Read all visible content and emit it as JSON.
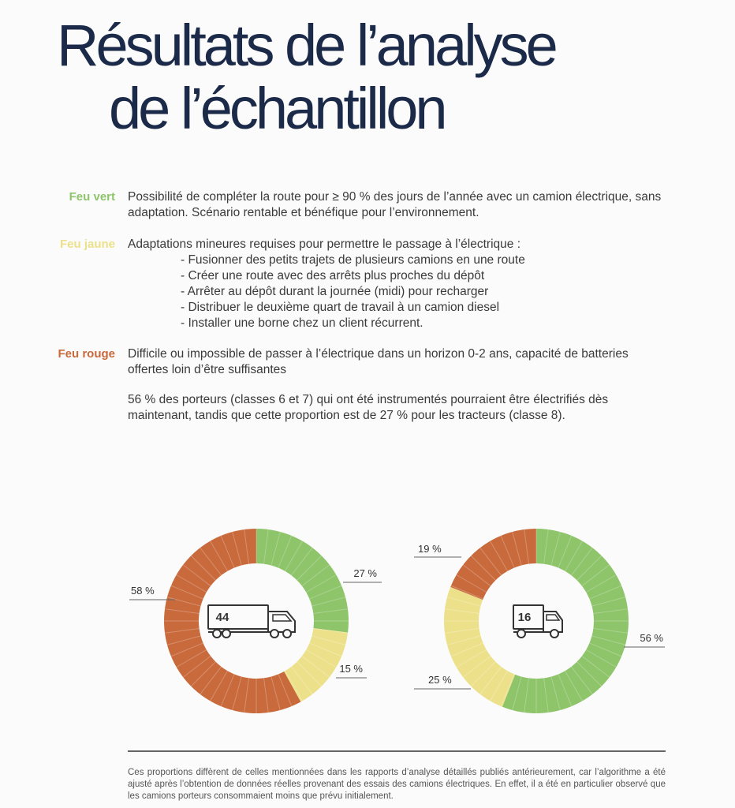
{
  "page": {
    "title_line1": "Résultats de l’analyse",
    "title_line2": "de l’échantillon"
  },
  "legend": {
    "green": {
      "label": "Feu vert",
      "color": "#8ec46a",
      "text": "Possibilité de compléter la route pour ≥ 90 % des jours de l’année avec un camion électrique, sans adaptation. Scénario rentable et bénéfique pour l’environnement."
    },
    "yellow": {
      "label": "Feu jaune",
      "color": "#ece18a",
      "text": "Adaptations mineures requises pour permettre le passage à l’électrique :",
      "bullets": [
        "Fusionner des petits trajets de plusieurs camions en une route",
        "Créer une route avec des arrêts plus proches du dépôt",
        "Arrêter au dépôt durant la journée (midi) pour recharger",
        "Distribuer le deuxième quart de travail à un camion diesel",
        "Installer une borne chez un client récurrent."
      ]
    },
    "red": {
      "label": "Feu rouge",
      "color": "#c96a3c",
      "text": "Difficile ou impossible de passer à l’électrique dans un horizon 0-2 ans, capacité de batteries offertes loin d’être suffisantes"
    }
  },
  "summary": "56 % des porteurs (classes 6 et 7) qui ont été instrumentés pourraient être électrifiés dès maintenant, tandis que cette proportion est de 27 % pour les tracteurs (classe 8).",
  "chart_data": [
    {
      "type": "pie",
      "center_label": "44",
      "icon": "tractor-trailer-icon",
      "categories": [
        "Feu vert",
        "Feu jaune",
        "Feu rouge"
      ],
      "values": [
        27,
        15,
        58
      ],
      "labels": [
        "27 %",
        "15 %",
        "58 %"
      ],
      "colors": [
        "#8ec46a",
        "#ece18a",
        "#c96a3c"
      ]
    },
    {
      "type": "pie",
      "center_label": "16",
      "icon": "box-truck-icon",
      "categories": [
        "Feu vert",
        "Feu jaune",
        "Feu rouge"
      ],
      "values": [
        56,
        25,
        19
      ],
      "labels": [
        "56 %",
        "25 %",
        "19 %"
      ],
      "colors": [
        "#8ec46a",
        "#ece18a",
        "#c96a3c"
      ]
    }
  ],
  "footnote": "Ces proportions diffèrent de celles mentionnées dans les rapports d’analyse détaillés publiés antérieurement, car l’algorithme a été ajusté après l’obtention de données réelles provenant des essais des camions électriques. En effet, il a été en particulier observé que les camions porteurs consommaient moins que prévu initialement."
}
